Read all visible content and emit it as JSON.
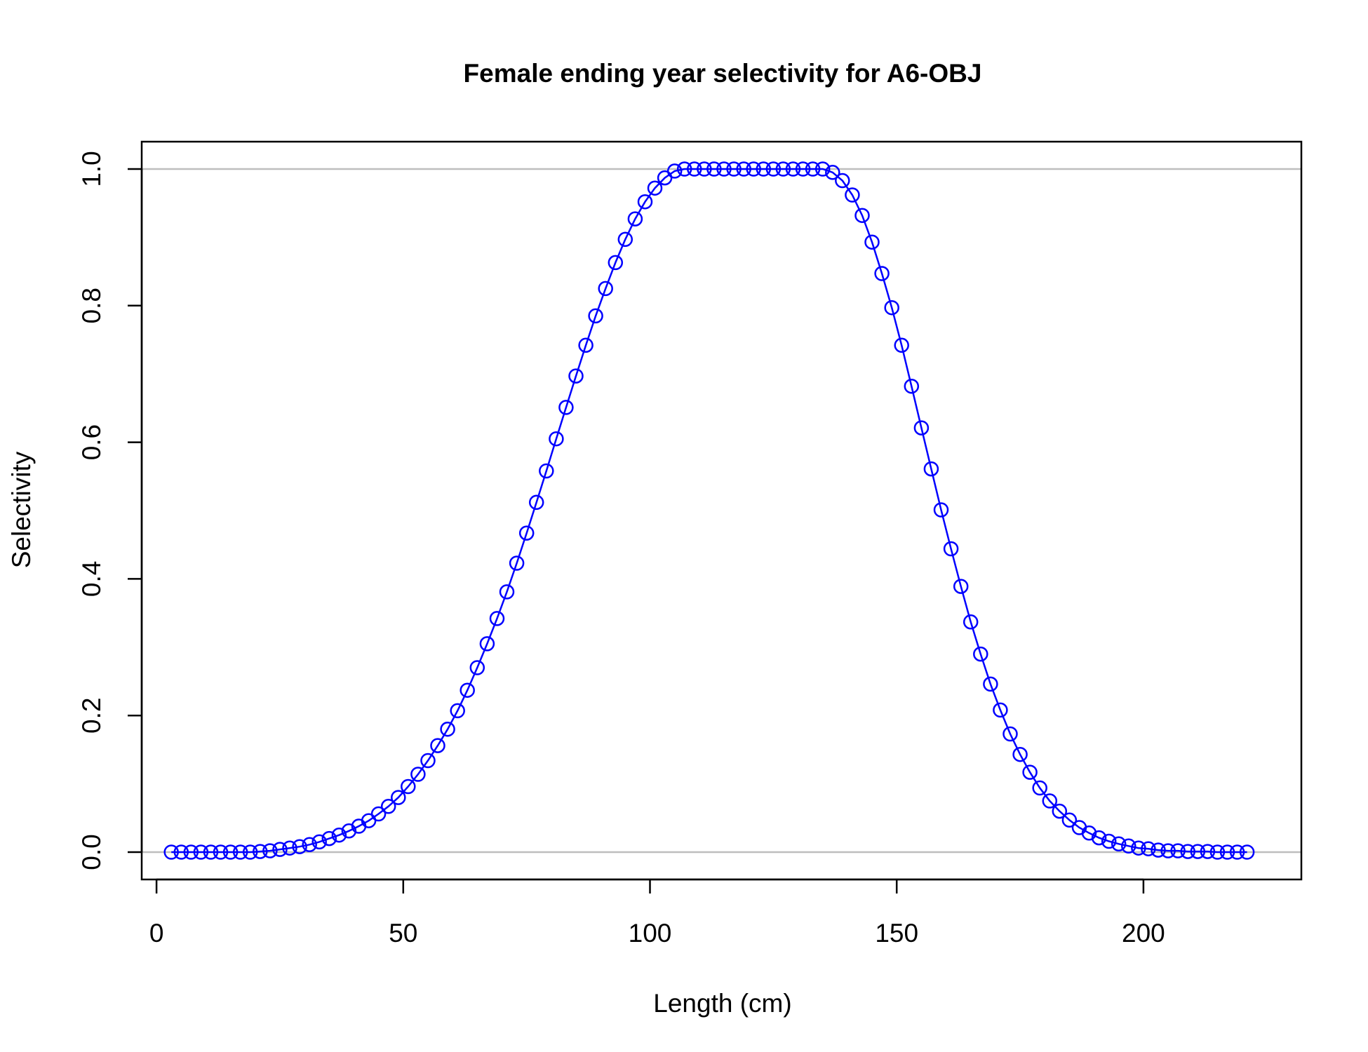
{
  "chart_data": {
    "type": "line",
    "title": "Female ending year selectivity for A6-OBJ",
    "xlabel": "Length (cm)",
    "ylabel": "Selectivity",
    "xlim": [
      -3,
      232
    ],
    "ylim": [
      -0.04,
      1.04
    ],
    "x_ticks": [
      0,
      50,
      100,
      150,
      200
    ],
    "y_ticks": [
      0.0,
      0.2,
      0.4,
      0.6,
      0.8,
      1.0
    ],
    "x_tick_labels": [
      "0",
      "50",
      "100",
      "150",
      "200"
    ],
    "y_tick_labels": [
      "0.0",
      "0.2",
      "0.4",
      "0.6",
      "0.8",
      "1.0"
    ],
    "reference_lines": [
      0,
      1
    ],
    "reference_line_color": "#bebebe",
    "grid": false,
    "legend": "none",
    "series": [
      {
        "color": "#0000ff",
        "marker": "open-circle",
        "x": [
          3,
          5,
          7,
          9,
          11,
          13,
          15,
          17,
          19,
          21,
          23,
          25,
          27,
          29,
          31,
          33,
          35,
          37,
          39,
          41,
          43,
          45,
          47,
          49,
          51,
          53,
          55,
          57,
          59,
          61,
          63,
          65,
          67,
          69,
          71,
          73,
          75,
          77,
          79,
          81,
          83,
          85,
          87,
          89,
          91,
          93,
          95,
          97,
          99,
          101,
          103,
          105,
          107,
          109,
          111,
          113,
          115,
          117,
          119,
          121,
          123,
          125,
          127,
          129,
          131,
          133,
          135,
          137,
          139,
          141,
          143,
          145,
          147,
          149,
          151,
          153,
          155,
          157,
          159,
          161,
          163,
          165,
          167,
          169,
          171,
          173,
          175,
          177,
          179,
          181,
          183,
          185,
          187,
          189,
          191,
          193,
          195,
          197,
          199,
          201,
          203,
          205,
          207,
          209,
          211,
          213,
          215,
          217,
          219,
          221
        ],
        "y": [
          0.0,
          0.0,
          0.0,
          0.0,
          0.0,
          0.0,
          0.0,
          0.0,
          0.0,
          0.001,
          0.002,
          0.004,
          0.006,
          0.008,
          0.011,
          0.015,
          0.02,
          0.025,
          0.031,
          0.038,
          0.046,
          0.056,
          0.067,
          0.08,
          0.096,
          0.114,
          0.134,
          0.156,
          0.18,
          0.207,
          0.237,
          0.27,
          0.305,
          0.342,
          0.381,
          0.423,
          0.467,
          0.512,
          0.558,
          0.605,
          0.651,
          0.697,
          0.742,
          0.785,
          0.825,
          0.863,
          0.897,
          0.927,
          0.952,
          0.972,
          0.987,
          0.997,
          1.0,
          1.0,
          1.0,
          1.0,
          1.0,
          1.0,
          1.0,
          1.0,
          1.0,
          1.0,
          1.0,
          1.0,
          1.0,
          1.0,
          1.0,
          0.995,
          0.983,
          0.962,
          0.932,
          0.893,
          0.847,
          0.797,
          0.742,
          0.682,
          0.621,
          0.561,
          0.501,
          0.444,
          0.389,
          0.337,
          0.29,
          0.246,
          0.208,
          0.173,
          0.143,
          0.117,
          0.094,
          0.075,
          0.06,
          0.047,
          0.036,
          0.028,
          0.021,
          0.016,
          0.012,
          0.009,
          0.006,
          0.005,
          0.003,
          0.002,
          0.002,
          0.001,
          0.001,
          0.001,
          0.0,
          0.0,
          0.0,
          0.0
        ]
      }
    ]
  }
}
